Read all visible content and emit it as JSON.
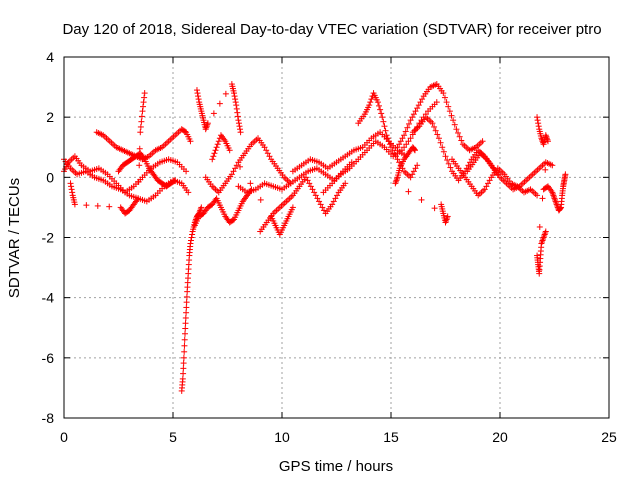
{
  "chart_data": {
    "type": "scatter",
    "title": "Day 120 of 2018, Sidereal Day-to-day VTEC variation (SDTVAR) for receiver ptro",
    "xlabel": "GPS time / hours",
    "ylabel": "SDTVAR / TECUs",
    "xlim": [
      0,
      25
    ],
    "ylim": [
      -8,
      4
    ],
    "x_ticks": [
      0,
      5,
      10,
      15,
      20,
      25
    ],
    "y_ticks": [
      -8,
      -6,
      -4,
      -2,
      0,
      2,
      4
    ],
    "grid": true,
    "marker": "+",
    "series_color": "#ff0000",
    "series": [
      {
        "name": "SDTVAR",
        "tracks": [
          {
            "x": [
              0.0,
              0.3,
              0.6,
              1.0,
              1.4,
              1.8,
              2.2,
              2.6,
              3.0,
              3.4,
              3.8,
              4.2,
              4.6,
              5.0,
              5.4,
              5.7
            ],
            "y": [
              0.6,
              0.3,
              0.1,
              0.2,
              0.0,
              -0.1,
              -0.3,
              -0.4,
              -0.6,
              -0.7,
              -0.8,
              -0.6,
              -0.3,
              -0.1,
              -0.2,
              -0.5
            ]
          },
          {
            "x": [
              0.0,
              0.2,
              0.5,
              0.8,
              1.2,
              1.6,
              2.0,
              2.4,
              2.8,
              3.2,
              3.6,
              4.0,
              4.4,
              4.8,
              5.2,
              5.6
            ],
            "y": [
              0.2,
              0.5,
              0.7,
              0.4,
              0.2,
              0.3,
              0.1,
              -0.2,
              -0.5,
              -0.3,
              0.0,
              0.3,
              0.5,
              0.6,
              0.5,
              0.2
            ]
          },
          {
            "x": [
              1.5,
              1.8,
              2.1,
              2.4,
              2.7,
              3.0,
              3.3,
              3.6,
              3.9,
              4.2,
              4.5,
              4.8,
              5.1,
              5.4,
              5.6,
              5.8
            ],
            "y": [
              1.5,
              1.4,
              1.2,
              1.0,
              0.9,
              0.8,
              0.7,
              0.6,
              0.7,
              0.9,
              1.0,
              1.2,
              1.4,
              1.6,
              1.5,
              1.2
            ]
          },
          {
            "x": [
              0.3,
              0.4,
              0.5,
              2.6,
              2.8,
              3.0,
              3.2,
              3.4,
              3.5,
              3.6,
              3.7
            ],
            "y": [
              -0.2,
              -0.6,
              -0.9,
              -1.0,
              -1.2,
              -1.1,
              -0.9,
              -0.7,
              1.5,
              2.2,
              2.8
            ]
          },
          {
            "x": [
              5.4,
              5.45,
              5.5,
              5.55,
              5.6,
              5.65,
              5.7,
              5.75,
              5.8,
              5.9,
              6.0,
              6.1,
              6.2,
              6.3
            ],
            "y": [
              -7.1,
              -6.7,
              -6.0,
              -5.2,
              -4.5,
              -3.8,
              -3.2,
              -2.6,
              -2.2,
              -1.8,
              -1.5,
              -1.3,
              -1.2,
              -1.0
            ]
          },
          {
            "x": [
              6.0,
              6.2,
              6.4,
              6.6,
              6.8,
              7.0,
              7.2,
              7.4,
              7.6,
              7.8,
              8.0,
              8.2,
              8.4,
              8.6
            ],
            "y": [
              -1.6,
              -1.3,
              -1.2,
              -1.0,
              -0.9,
              -0.7,
              -1.0,
              -1.3,
              -1.5,
              -1.4,
              -1.1,
              -0.8,
              -0.6,
              -0.4
            ]
          },
          {
            "x": [
              6.1,
              6.2,
              6.3,
              6.4,
              6.5,
              6.6,
              7.7,
              7.8,
              7.9,
              8.0,
              8.1
            ],
            "y": [
              2.9,
              2.5,
              2.2,
              1.9,
              1.6,
              1.8,
              3.1,
              2.8,
              2.4,
              1.9,
              1.5
            ]
          },
          {
            "x": [
              6.5,
              6.8,
              7.1,
              7.4,
              7.7,
              8.0,
              8.3,
              8.6,
              8.9,
              9.2,
              9.5,
              9.8,
              10.1,
              10.4
            ],
            "y": [
              0.0,
              -0.3,
              -0.5,
              -0.2,
              0.1,
              0.5,
              0.8,
              1.1,
              1.3,
              1.0,
              0.6,
              0.3,
              0.0,
              -0.2
            ]
          },
          {
            "x": [
              8.0,
              8.4,
              8.8,
              9.2,
              9.6,
              10.0,
              10.4,
              10.8,
              11.2,
              11.6,
              12.0,
              12.4,
              12.8,
              13.2
            ],
            "y": [
              -0.3,
              -0.5,
              -0.4,
              -0.2,
              -0.3,
              -0.4,
              -0.2,
              0.0,
              0.2,
              0.3,
              0.1,
              -0.1,
              0.2,
              0.5
            ]
          },
          {
            "x": [
              9.0,
              9.3,
              9.6,
              9.9,
              10.2,
              10.5,
              10.8,
              11.1,
              11.4,
              11.7,
              12.0,
              12.3,
              12.6,
              12.9
            ],
            "y": [
              -1.8,
              -1.5,
              -1.2,
              -1.0,
              -0.8,
              -0.6,
              -0.3,
              0.0,
              -0.4,
              -0.8,
              -1.2,
              -0.9,
              -0.5,
              -0.2
            ]
          },
          {
            "x": [
              10.5,
              10.9,
              11.3,
              11.7,
              12.1,
              12.5,
              12.9,
              13.3,
              13.7,
              14.1,
              14.5,
              14.9,
              15.3,
              15.7
            ],
            "y": [
              0.2,
              0.4,
              0.6,
              0.5,
              0.3,
              0.5,
              0.7,
              0.9,
              1.0,
              1.3,
              1.5,
              1.2,
              0.9,
              0.7
            ]
          },
          {
            "x": [
              11.9,
              12.3,
              12.7,
              13.1,
              13.5,
              13.9,
              14.3,
              14.7,
              15.1,
              15.5,
              15.9,
              16.3,
              16.7,
              17.1
            ],
            "y": [
              -0.5,
              -0.2,
              0.1,
              0.3,
              0.6,
              0.9,
              1.2,
              1.0,
              0.7,
              0.9,
              1.3,
              1.8,
              2.2,
              2.5
            ]
          },
          {
            "x": [
              13.5,
              13.8,
              14.0,
              14.2,
              14.4,
              14.6,
              14.8,
              15.0,
              15.3,
              15.6,
              15.9,
              16.2
            ],
            "y": [
              1.8,
              2.1,
              2.4,
              2.8,
              2.5,
              2.0,
              1.4,
              1.0,
              0.6,
              0.2,
              0.0,
              0.4
            ]
          },
          {
            "x": [
              15.3,
              15.6,
              15.9,
              16.2,
              16.5,
              16.8,
              17.1,
              17.4,
              17.7,
              18.0,
              18.3,
              18.6,
              18.9,
              19.2
            ],
            "y": [
              1.0,
              1.4,
              1.9,
              2.3,
              2.7,
              3.0,
              3.1,
              2.8,
              2.2,
              1.6,
              1.1,
              0.9,
              1.0,
              1.2
            ]
          },
          {
            "x": [
              16.0,
              16.3,
              16.6,
              16.9,
              17.2,
              17.5,
              17.8,
              18.1,
              18.4,
              18.7,
              19.0,
              19.3,
              19.6,
              19.9
            ],
            "y": [
              1.5,
              1.7,
              2.0,
              1.8,
              1.3,
              0.7,
              0.2,
              -0.1,
              0.2,
              0.6,
              0.9,
              0.7,
              0.4,
              0.1
            ]
          },
          {
            "x": [
              17.3,
              17.4,
              17.5,
              17.6,
              15.2,
              15.3,
              15.4,
              15.6,
              15.8,
              16.0,
              16.1
            ],
            "y": [
              -0.9,
              -1.2,
              -1.5,
              -1.3,
              -0.2,
              0.0,
              0.3,
              0.6,
              0.8,
              1.0,
              0.9
            ]
          },
          {
            "x": [
              17.8,
              18.1,
              18.4,
              18.7,
              19.0,
              19.3,
              19.6,
              19.9,
              20.2,
              20.5,
              20.8,
              21.1,
              21.4,
              21.7
            ],
            "y": [
              0.6,
              0.3,
              0.0,
              -0.3,
              -0.6,
              -0.4,
              0.0,
              0.3,
              0.1,
              -0.2,
              -0.3,
              -0.5,
              -0.4,
              -0.6
            ]
          },
          {
            "x": [
              18.5,
              18.8,
              19.1,
              19.4,
              19.7,
              20.0,
              20.3,
              20.6,
              20.9,
              21.2,
              21.5,
              21.8,
              22.1,
              22.4
            ],
            "y": [
              0.2,
              0.5,
              0.8,
              0.6,
              0.3,
              0.0,
              -0.2,
              -0.4,
              -0.3,
              -0.1,
              0.1,
              0.3,
              0.5,
              0.4
            ]
          },
          {
            "x": [
              21.7,
              21.8,
              21.9,
              22.0,
              22.1,
              22.2,
              21.7,
              21.75,
              21.8,
              21.85,
              21.9,
              22.0,
              22.1
            ],
            "y": [
              2.0,
              1.6,
              1.3,
              1.1,
              1.4,
              1.2,
              -2.6,
              -2.9,
              -3.2,
              -2.7,
              -2.2,
              -2.0,
              -1.8
            ]
          },
          {
            "x": [
              22.0,
              22.2,
              22.4,
              22.5,
              22.6,
              22.7,
              22.8,
              22.85,
              22.9,
              22.95,
              23.0
            ],
            "y": [
              -0.4,
              -0.3,
              -0.5,
              -0.7,
              -0.9,
              -1.1,
              -1.0,
              -0.6,
              -0.3,
              -0.1,
              0.1
            ]
          },
          {
            "x": [
              2.5,
              2.7,
              2.9,
              3.1,
              3.3,
              3.5,
              3.7,
              3.9,
              4.1,
              4.3,
              4.5,
              4.7,
              4.9,
              5.1
            ],
            "y": [
              0.2,
              0.4,
              0.5,
              0.6,
              0.7,
              0.8,
              0.6,
              0.3,
              0.1,
              -0.1,
              -0.2,
              -0.3,
              -0.2,
              -0.1
            ]
          },
          {
            "x": [
              6.8,
              7.0,
              7.2,
              7.4,
              7.6,
              9.5,
              9.7,
              9.9,
              10.1,
              10.3,
              10.5
            ],
            "y": [
              0.6,
              1.0,
              1.4,
              1.2,
              0.9,
              -1.3,
              -1.6,
              -1.9,
              -1.6,
              -1.3,
              -1.0
            ]
          }
        ]
      }
    ]
  }
}
